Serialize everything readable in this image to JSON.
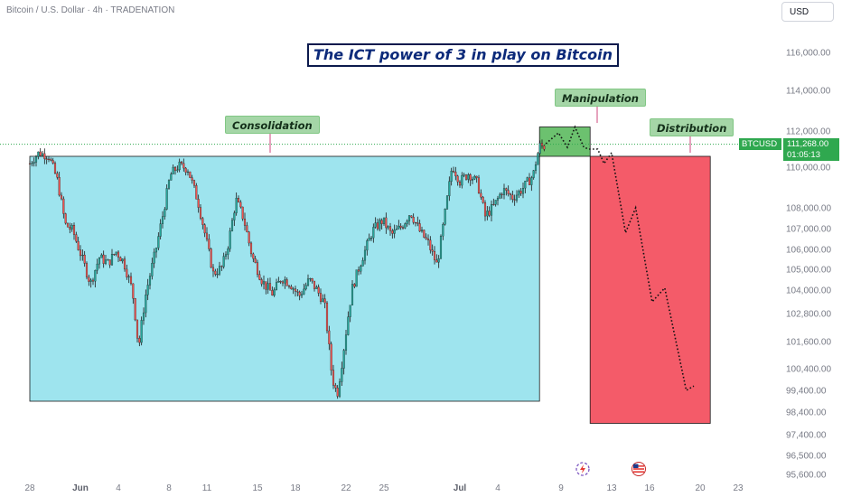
{
  "header": {
    "symbol_line": "Bitcoin / U.S. Dollar · 4h · TRADENATION",
    "currency": "USD"
  },
  "annotations": {
    "title": "The ICT power of 3 in play on Bitcoin",
    "consolidation": "Consolidation",
    "manipulation": "Manipulation",
    "distribution": "Distribution"
  },
  "price_tag": {
    "symbol": "BTCUSD",
    "price": "111,268.00",
    "countdown": "01:05:13"
  },
  "colors": {
    "up": "#26a69a",
    "down": "#ef5350",
    "consolidation_fill": "#9ee4ee",
    "manipulation_fill": "#6cc16f",
    "distribution_fill": "#f45b69",
    "price_tag": "#2fa84f"
  },
  "icons": {
    "event_icon": "lightning-icon",
    "flag_icon": "us-flag-icon"
  },
  "chart_data": {
    "type": "candlestick",
    "timeframe": "4h",
    "y_ticks": [
      116000,
      114000,
      112000,
      110000,
      108000,
      107000,
      106000,
      105000,
      104000,
      102800,
      101600,
      100400,
      99400,
      98400,
      97400,
      96500,
      95600
    ],
    "y_tick_labels": [
      "116,000.00",
      "114,000.00",
      "112,000.00",
      "110,000.00",
      "108,000.00",
      "107,000.00",
      "106,000.00",
      "105,000.00",
      "104,000.00",
      "102,800.00",
      "101,600.00",
      "100,400.00",
      "99,400.00",
      "98,400.00",
      "97,400.00",
      "96,500.00",
      "95,600.00"
    ],
    "x_labels": [
      {
        "text": "28",
        "bold": false
      },
      {
        "text": "Jun",
        "bold": true
      },
      {
        "text": "4",
        "bold": false
      },
      {
        "text": "8",
        "bold": false
      },
      {
        "text": "11",
        "bold": false
      },
      {
        "text": "15",
        "bold": false
      },
      {
        "text": "18",
        "bold": false
      },
      {
        "text": "22",
        "bold": false
      },
      {
        "text": "25",
        "bold": false
      },
      {
        "text": "Jul",
        "bold": true
      },
      {
        "text": "4",
        "bold": false
      },
      {
        "text": "9",
        "bold": false
      },
      {
        "text": "13",
        "bold": false
      },
      {
        "text": "16",
        "bold": false
      },
      {
        "text": "20",
        "bold": false
      },
      {
        "text": "23",
        "bold": false
      }
    ],
    "x_label_days": [
      0,
      4,
      7,
      11,
      14,
      18,
      21,
      25,
      28,
      34,
      37,
      42,
      46,
      49,
      53,
      56
    ],
    "current_price": 111268,
    "price_path": [
      [
        0.0,
        110200
      ],
      [
        0.7,
        110800
      ],
      [
        1.5,
        110600
      ],
      [
        2.2,
        109300
      ],
      [
        2.8,
        107200
      ],
      [
        3.4,
        106900
      ],
      [
        4.0,
        105800
      ],
      [
        4.8,
        104300
      ],
      [
        5.5,
        105600
      ],
      [
        6.2,
        105300
      ],
      [
        6.8,
        105900
      ],
      [
        7.4,
        105400
      ],
      [
        8.1,
        104000
      ],
      [
        8.6,
        101300
      ],
      [
        9.2,
        103900
      ],
      [
        9.9,
        105800
      ],
      [
        10.5,
        107600
      ],
      [
        11.1,
        109600
      ],
      [
        11.8,
        110100
      ],
      [
        12.5,
        109900
      ],
      [
        13.3,
        108300
      ],
      [
        13.9,
        106600
      ],
      [
        14.5,
        104800
      ],
      [
        15.2,
        105100
      ],
      [
        15.7,
        106300
      ],
      [
        16.3,
        108400
      ],
      [
        16.9,
        107500
      ],
      [
        17.6,
        105600
      ],
      [
        18.4,
        104400
      ],
      [
        19.2,
        103800
      ],
      [
        19.9,
        104600
      ],
      [
        20.6,
        104300
      ],
      [
        21.3,
        103700
      ],
      [
        22.1,
        104500
      ],
      [
        22.7,
        104000
      ],
      [
        23.3,
        103300
      ],
      [
        23.9,
        100000
      ],
      [
        24.3,
        99200
      ],
      [
        24.9,
        101600
      ],
      [
        25.5,
        104100
      ],
      [
        26.3,
        105600
      ],
      [
        27.1,
        106900
      ],
      [
        27.9,
        107400
      ],
      [
        28.6,
        106700
      ],
      [
        29.4,
        107100
      ],
      [
        30.1,
        107800
      ],
      [
        30.8,
        106900
      ],
      [
        31.5,
        106300
      ],
      [
        32.2,
        105200
      ],
      [
        32.8,
        107600
      ],
      [
        33.4,
        110100
      ],
      [
        34.0,
        109300
      ],
      [
        34.7,
        109700
      ],
      [
        35.4,
        109200
      ],
      [
        36.0,
        107600
      ],
      [
        36.7,
        108100
      ],
      [
        37.4,
        108900
      ],
      [
        38.2,
        108500
      ],
      [
        38.9,
        108900
      ],
      [
        39.8,
        109600
      ],
      [
        40.3,
        111200
      ],
      [
        40.8,
        111100
      ]
    ],
    "zones": {
      "consolidation": {
        "from_day": 0,
        "to_day": 40.3,
        "low": 98900,
        "high": 110600
      },
      "manipulation": {
        "from_day": 40.3,
        "to_day": 44.3,
        "low": 110600,
        "high": 112200
      },
      "distribution": {
        "from_day": 44.3,
        "to_day": 53.8,
        "low": 97900,
        "high": 110600
      }
    },
    "projection_path": [
      [
        40.8,
        111300
      ],
      [
        41.8,
        111900
      ],
      [
        42.5,
        111100
      ],
      [
        43.1,
        112200
      ],
      [
        43.8,
        111100
      ],
      [
        44.2,
        111000
      ],
      [
        44.9,
        111000
      ],
      [
        45.4,
        110200
      ],
      [
        46.0,
        110800
      ],
      [
        47.1,
        106800
      ],
      [
        47.9,
        108000
      ],
      [
        49.2,
        103400
      ],
      [
        50.2,
        104100
      ],
      [
        51.9,
        99400
      ],
      [
        52.5,
        99600
      ]
    ]
  }
}
